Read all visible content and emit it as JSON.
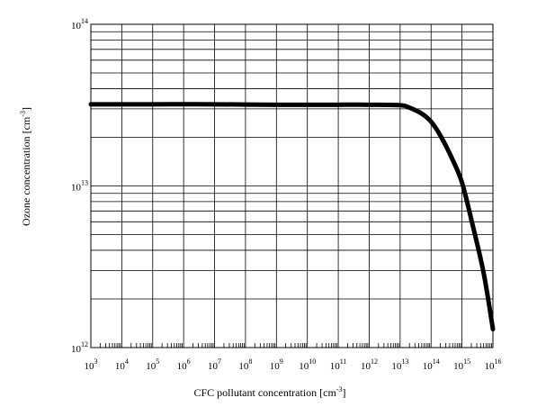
{
  "chart_data": {
    "type": "line",
    "xlabel": "CFC pollutant concentration [cm",
    "xlabel_exp": "-3",
    "xlabel_suffix": "]",
    "ylabel": "Ozone concentration  [cm",
    "ylabel_exp": "-3",
    "ylabel_suffix": "]",
    "xscale": "log",
    "yscale": "log",
    "xlim": [
      1000.0,
      1e+16
    ],
    "ylim": [
      1000000000000.0,
      100000000000000.0
    ],
    "grid": true,
    "x_ticks": [
      {
        "base": "10",
        "exp": "3",
        "value": 1000.0
      },
      {
        "base": "10",
        "exp": "4",
        "value": 10000.0
      },
      {
        "base": "10",
        "exp": "5",
        "value": 100000.0
      },
      {
        "base": "10",
        "exp": "6",
        "value": 1000000.0
      },
      {
        "base": "10",
        "exp": "7",
        "value": 10000000.0
      },
      {
        "base": "10",
        "exp": "8",
        "value": 100000000.0
      },
      {
        "base": "10",
        "exp": "9",
        "value": 1000000000.0
      },
      {
        "base": "10",
        "exp": "10",
        "value": 10000000000.0
      },
      {
        "base": "10",
        "exp": "11",
        "value": 100000000000.0
      },
      {
        "base": "10",
        "exp": "12",
        "value": 1000000000000.0
      },
      {
        "base": "10",
        "exp": "13",
        "value": 10000000000000.0
      },
      {
        "base": "10",
        "exp": "14",
        "value": 100000000000000.0
      },
      {
        "base": "10",
        "exp": "15",
        "value": 1000000000000000.0
      },
      {
        "base": "10",
        "exp": "16",
        "value": 1e+16
      }
    ],
    "y_ticks": [
      {
        "base": "10",
        "exp": "12",
        "value": 1000000000000.0
      },
      {
        "base": "10",
        "exp": "13",
        "value": 10000000000000.0
      },
      {
        "base": "10",
        "exp": "14",
        "value": 100000000000000.0
      }
    ],
    "series": [
      {
        "color": "#000000",
        "points": [
          [
            1000.0,
            32000000000000.0
          ],
          [
            100000.0,
            32000000000000.0
          ],
          [
            10000000.0,
            32000000000000.0
          ],
          [
            1000000000.0,
            31800000000000.0
          ],
          [
            100000000000.0,
            31800000000000.0
          ],
          [
            1000000000000.0,
            31800000000000.0
          ],
          [
            10000000000000.0,
            31600000000000.0
          ],
          [
            20000000000000.0,
            30500000000000.0
          ],
          [
            50000000000000.0,
            28000000000000.0
          ],
          [
            100000000000000.0,
            25000000000000.0
          ],
          [
            200000000000000.0,
            20500000000000.0
          ],
          [
            500000000000000.0,
            14500000000000.0
          ],
          [
            1000000000000000.0,
            10500000000000.0
          ],
          [
            2000000000000000.0,
            6200000000000.0
          ],
          [
            5000000000000000.0,
            2900000000000.0
          ],
          [
            1e+16,
            1300000000000.0
          ]
        ]
      }
    ]
  }
}
